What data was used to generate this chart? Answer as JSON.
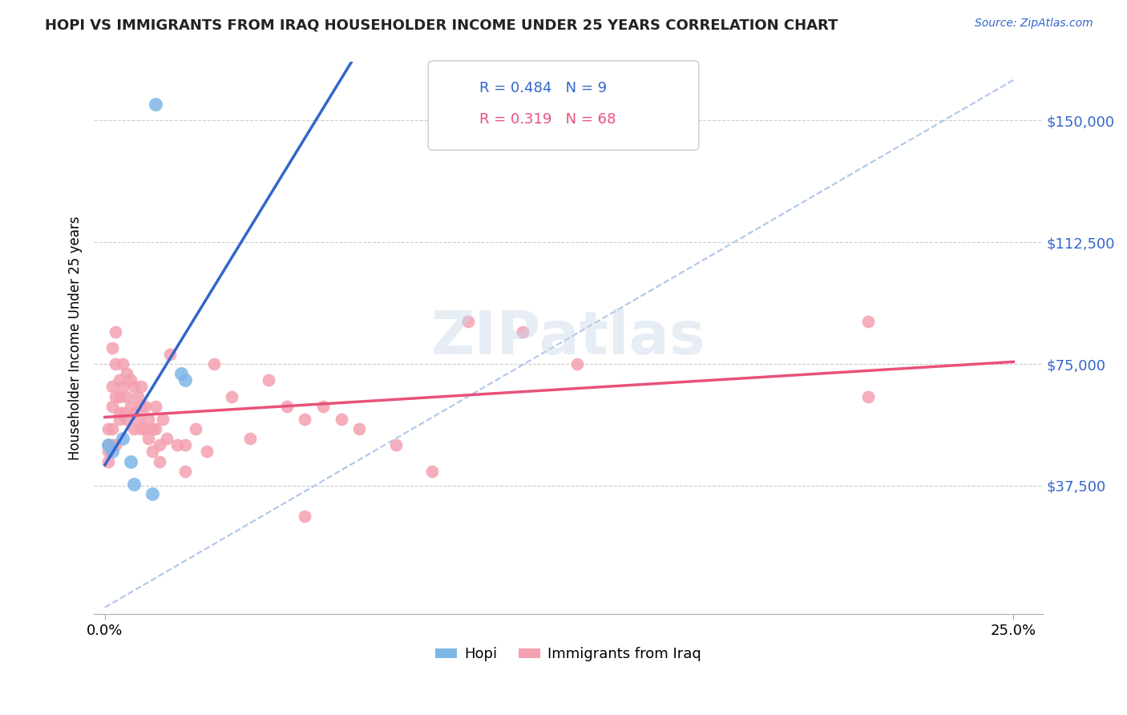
{
  "title": "HOPI VS IMMIGRANTS FROM IRAQ HOUSEHOLDER INCOME UNDER 25 YEARS CORRELATION CHART",
  "source": "Source: ZipAtlas.com",
  "ylabel": "Householder Income Under 25 years",
  "ytick_labels": [
    "$37,500",
    "$75,000",
    "$112,500",
    "$150,000"
  ],
  "ytick_values": [
    37500,
    75000,
    112500,
    150000
  ],
  "hopi_R": 0.484,
  "hopi_N": 9,
  "iraq_R": 0.319,
  "iraq_N": 68,
  "hopi_color": "#7EB6E8",
  "iraq_color": "#F4A0B0",
  "hopi_line_color": "#3366CC",
  "iraq_line_color": "#E8527A",
  "dashed_line_color": "#AEC6E8",
  "background_color": "#FFFFFF",
  "watermark": "ZIPatlas",
  "hopi_x": [
    0.001,
    0.002,
    0.005,
    0.007,
    0.008,
    0.013,
    0.014,
    0.021,
    0.022
  ],
  "hopi_y": [
    50000,
    48000,
    52000,
    45000,
    38000,
    35000,
    155000,
    72000,
    70000
  ],
  "iraq_x": [
    0.001,
    0.001,
    0.001,
    0.001,
    0.002,
    0.002,
    0.002,
    0.002,
    0.002,
    0.003,
    0.003,
    0.003,
    0.003,
    0.004,
    0.004,
    0.004,
    0.004,
    0.005,
    0.005,
    0.005,
    0.006,
    0.006,
    0.006,
    0.007,
    0.007,
    0.008,
    0.008,
    0.008,
    0.009,
    0.009,
    0.01,
    0.01,
    0.01,
    0.011,
    0.011,
    0.012,
    0.012,
    0.013,
    0.013,
    0.014,
    0.014,
    0.015,
    0.015,
    0.016,
    0.017,
    0.018,
    0.02,
    0.022,
    0.022,
    0.025,
    0.028,
    0.03,
    0.035,
    0.04,
    0.045,
    0.05,
    0.055,
    0.055,
    0.06,
    0.065,
    0.07,
    0.08,
    0.09,
    0.1,
    0.115,
    0.13,
    0.21,
    0.21
  ],
  "iraq_y": [
    50000,
    48000,
    45000,
    55000,
    80000,
    68000,
    62000,
    55000,
    50000,
    85000,
    75000,
    65000,
    50000,
    70000,
    65000,
    60000,
    58000,
    75000,
    68000,
    60000,
    72000,
    65000,
    58000,
    70000,
    62000,
    68000,
    60000,
    55000,
    65000,
    58000,
    68000,
    62000,
    55000,
    62000,
    55000,
    58000,
    52000,
    55000,
    48000,
    62000,
    55000,
    50000,
    45000,
    58000,
    52000,
    78000,
    50000,
    50000,
    42000,
    55000,
    48000,
    75000,
    65000,
    52000,
    70000,
    62000,
    58000,
    28000,
    62000,
    58000,
    55000,
    50000,
    42000,
    88000,
    85000,
    75000,
    65000,
    88000
  ]
}
